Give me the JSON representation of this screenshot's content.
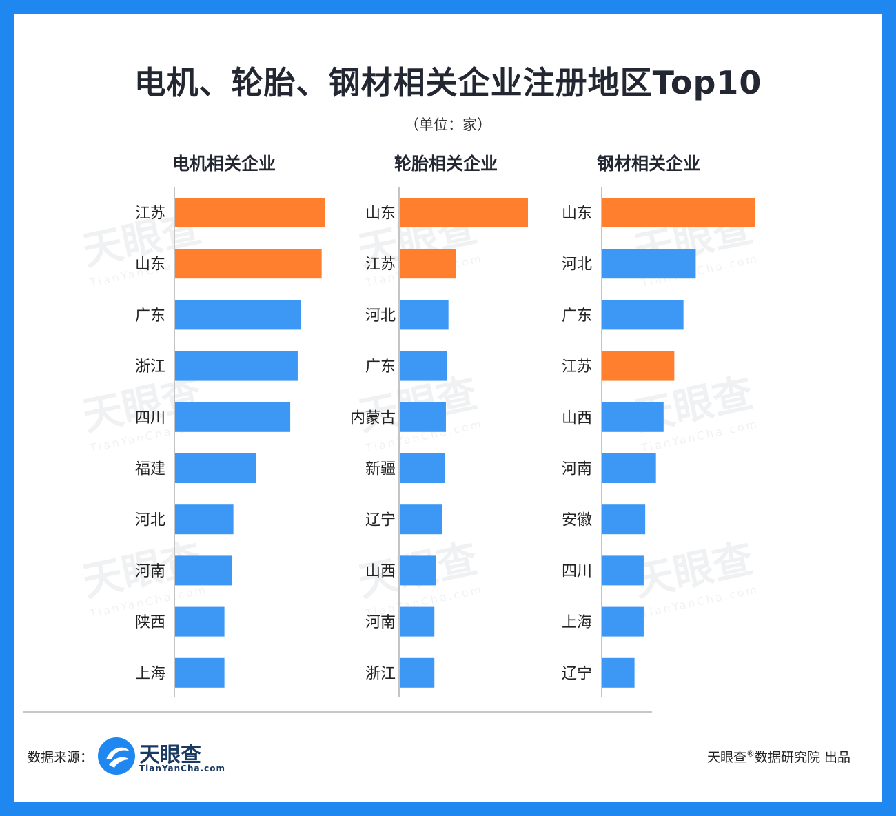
{
  "title": "电机、轮胎、钢材相关企业注册地区Top10",
  "unit": "（单位：家）",
  "colors": {
    "highlight": "#ff7f2f",
    "normal": "#3d97f5",
    "axis": "#c4c4c4",
    "label": "#222222"
  },
  "chart_data": [
    {
      "type": "bar",
      "orientation": "horizontal",
      "title": "电机相关企业",
      "categories": [
        "江苏",
        "山东",
        "广东",
        "浙江",
        "四川",
        "福建",
        "河北",
        "河南",
        "陕西",
        "上海"
      ],
      "values": [
        100,
        98,
        84,
        82,
        77,
        54,
        39,
        38,
        33,
        33
      ],
      "highlight": [
        true,
        true,
        false,
        false,
        false,
        false,
        false,
        false,
        false,
        false
      ],
      "xlim": [
        0,
        100
      ]
    },
    {
      "type": "bar",
      "orientation": "horizontal",
      "title": "轮胎相关企业",
      "categories": [
        "山东",
        "江苏",
        "河北",
        "广东",
        "内蒙古",
        "新疆",
        "辽宁",
        "山西",
        "河南",
        "浙江"
      ],
      "values": [
        100,
        44,
        38,
        37,
        36,
        35,
        33,
        28,
        27,
        27
      ],
      "highlight": [
        true,
        true,
        false,
        false,
        false,
        false,
        false,
        false,
        false,
        false
      ],
      "xlim": [
        0,
        100
      ]
    },
    {
      "type": "bar",
      "orientation": "horizontal",
      "title": "钢材相关企业",
      "categories": [
        "山东",
        "河北",
        "广东",
        "江苏",
        "山西",
        "河南",
        "安徽",
        "四川",
        "上海",
        "辽宁"
      ],
      "values": [
        100,
        61,
        53,
        47,
        40,
        35,
        28,
        27,
        27,
        21
      ],
      "highlight": [
        true,
        false,
        false,
        true,
        false,
        false,
        false,
        false,
        false,
        false
      ],
      "xlim": [
        0,
        100
      ]
    }
  ],
  "footer": {
    "source_label": "数据来源：",
    "logo_text": "天眼查",
    "logo_sub": "TianYanCha.com",
    "credit_main": "天眼查",
    "credit_reg": "®",
    "credit_rest": "数据研究院 出品"
  },
  "watermark": {
    "text": "天眼查",
    "sub": "TianYanCha.com"
  }
}
